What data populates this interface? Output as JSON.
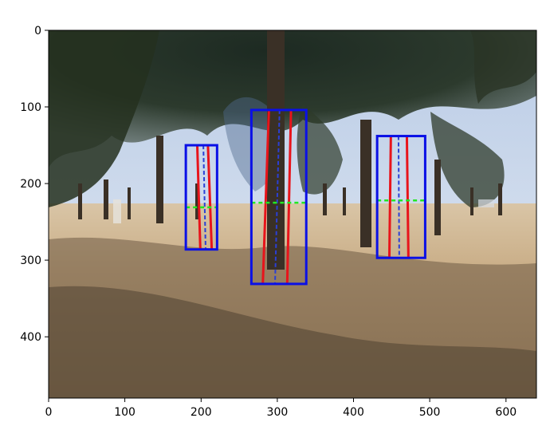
{
  "axes": {
    "x_ticks": [
      "0",
      "100",
      "200",
      "300",
      "400",
      "500",
      "600"
    ],
    "y_ticks": [
      "0",
      "100",
      "200",
      "300",
      "400"
    ],
    "x_range": [
      0,
      640
    ],
    "y_range": [
      0,
      480
    ],
    "y_inverted": true
  },
  "image": {
    "description": "outdoor park scene with pine trees and dry grass",
    "detections": [
      {
        "box": {
          "x1": 180,
          "y1": 150,
          "x2": 221,
          "y2": 286
        },
        "edge_lines": [
          {
            "x1": 195,
            "y1": 150,
            "x2": 199,
            "y2": 286
          },
          {
            "x1": 209,
            "y1": 150,
            "x2": 214,
            "y2": 286
          }
        ],
        "center_line": {
          "x1": 203,
          "y1": 150,
          "x2": 206,
          "y2": 286
        },
        "measure_y": 231
      },
      {
        "box": {
          "x1": 266,
          "y1": 104,
          "x2": 338,
          "y2": 331
        },
        "edge_lines": [
          {
            "x1": 289,
            "y1": 104,
            "x2": 281,
            "y2": 331
          },
          {
            "x1": 318,
            "y1": 104,
            "x2": 313,
            "y2": 331
          }
        ],
        "center_line": {
          "x1": 303,
          "y1": 104,
          "x2": 297,
          "y2": 331
        },
        "measure_y": 225
      },
      {
        "box": {
          "x1": 431,
          "y1": 138,
          "x2": 494,
          "y2": 297
        },
        "edge_lines": [
          {
            "x1": 449,
            "y1": 138,
            "x2": 447,
            "y2": 297
          },
          {
            "x1": 470,
            "y1": 138,
            "x2": 472,
            "y2": 297
          }
        ],
        "center_line": {
          "x1": 459,
          "y1": 138,
          "x2": 460,
          "y2": 297
        },
        "measure_y": 222
      }
    ]
  },
  "colors": {
    "box": "#0a10e6",
    "edge": "#e8141b",
    "center": "#2a3fd6",
    "measure": "#22e822"
  }
}
